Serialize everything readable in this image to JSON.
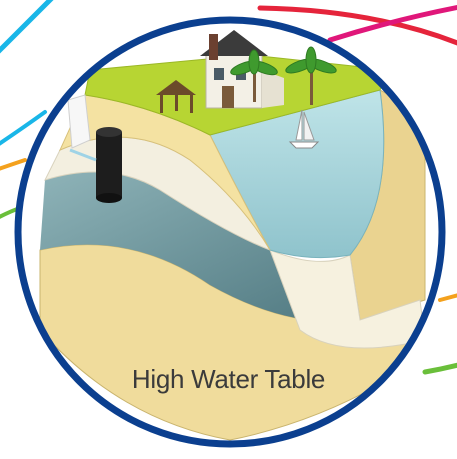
{
  "caption": "High Water Table",
  "colors": {
    "ring": "#0b3f8f",
    "caption": "#3b3b3b",
    "water": "#a9d6dc",
    "grass": "#b7d533",
    "sand": "#f2e2a6",
    "aquifer": "#6f979e",
    "tank": "#1d1d1d",
    "stripe_cyan": "#19b6e8",
    "stripe_red": "#e5243b",
    "stripe_magenta": "#e0177a",
    "stripe_orange": "#f4a11d",
    "stripe_green": "#6abf3a"
  },
  "icons": [
    "house-icon",
    "gazebo-icon",
    "palm-tree-icon",
    "sailboat-icon",
    "septic-tank-icon"
  ]
}
